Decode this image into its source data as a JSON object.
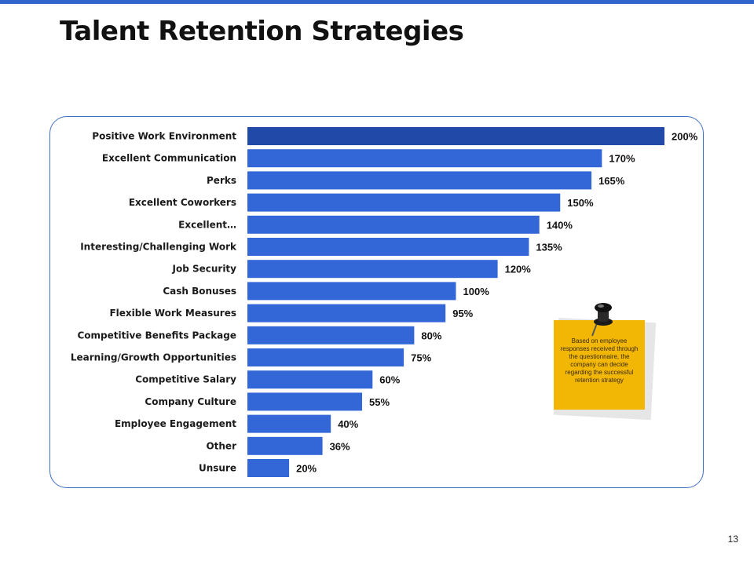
{
  "slide": {
    "title": "Talent Retention Strategies",
    "page_number": "13",
    "note_text": "Based on employee responses received through the questionnaire, the company can decide regarding the successful retention strategy"
  },
  "colors": {
    "accent_bar": "#3366cc",
    "bar": "#3366d6",
    "bar_top": "#2149a8",
    "frame": "#3f6fc4",
    "note": "#f2b705"
  },
  "chart_data": {
    "type": "bar",
    "orientation": "horizontal",
    "title": "",
    "xlabel": "",
    "ylabel": "",
    "xlim": [
      0,
      200
    ],
    "grid": false,
    "legend": "none",
    "value_suffix": "%",
    "categories": [
      "Positive Work Environment",
      "Excellent Communication",
      "Perks",
      "Excellent Coworkers",
      "Excellent…",
      "Interesting/Challenging Work",
      "Job Security",
      "Cash Bonuses",
      "Flexible Work Measures",
      "Competitive Benefits Package",
      "Learning/Growth Opportunities",
      "Competitive Salary",
      "Company Culture",
      "Employee Engagement",
      "Other",
      "Unsure"
    ],
    "values": [
      200,
      170,
      165,
      150,
      140,
      135,
      120,
      100,
      95,
      80,
      75,
      60,
      55,
      40,
      36,
      20
    ]
  }
}
